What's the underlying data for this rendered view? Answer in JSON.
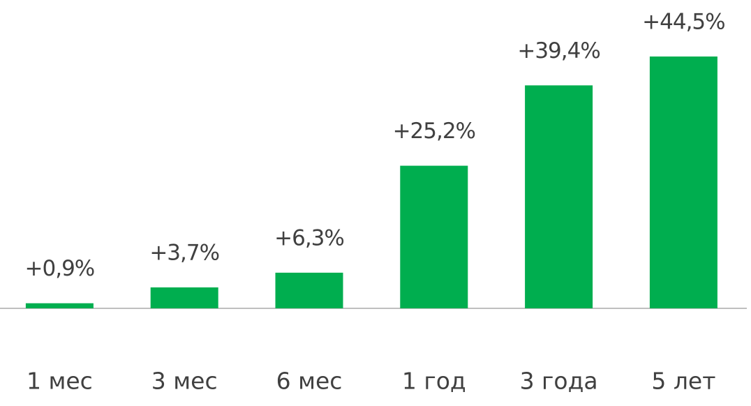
{
  "chart_data": {
    "type": "bar",
    "categories": [
      "1 мес",
      "3 мес",
      "6 мес",
      "1 год",
      "3 года",
      "5 лет"
    ],
    "values": [
      0.9,
      3.7,
      6.3,
      25.2,
      39.4,
      44.5
    ],
    "value_labels": [
      "+0,9%",
      "+3,7%",
      "+6,3%",
      "+25,2%",
      "+39,4%",
      "+44,5%"
    ],
    "color": "#00ae4f"
  }
}
